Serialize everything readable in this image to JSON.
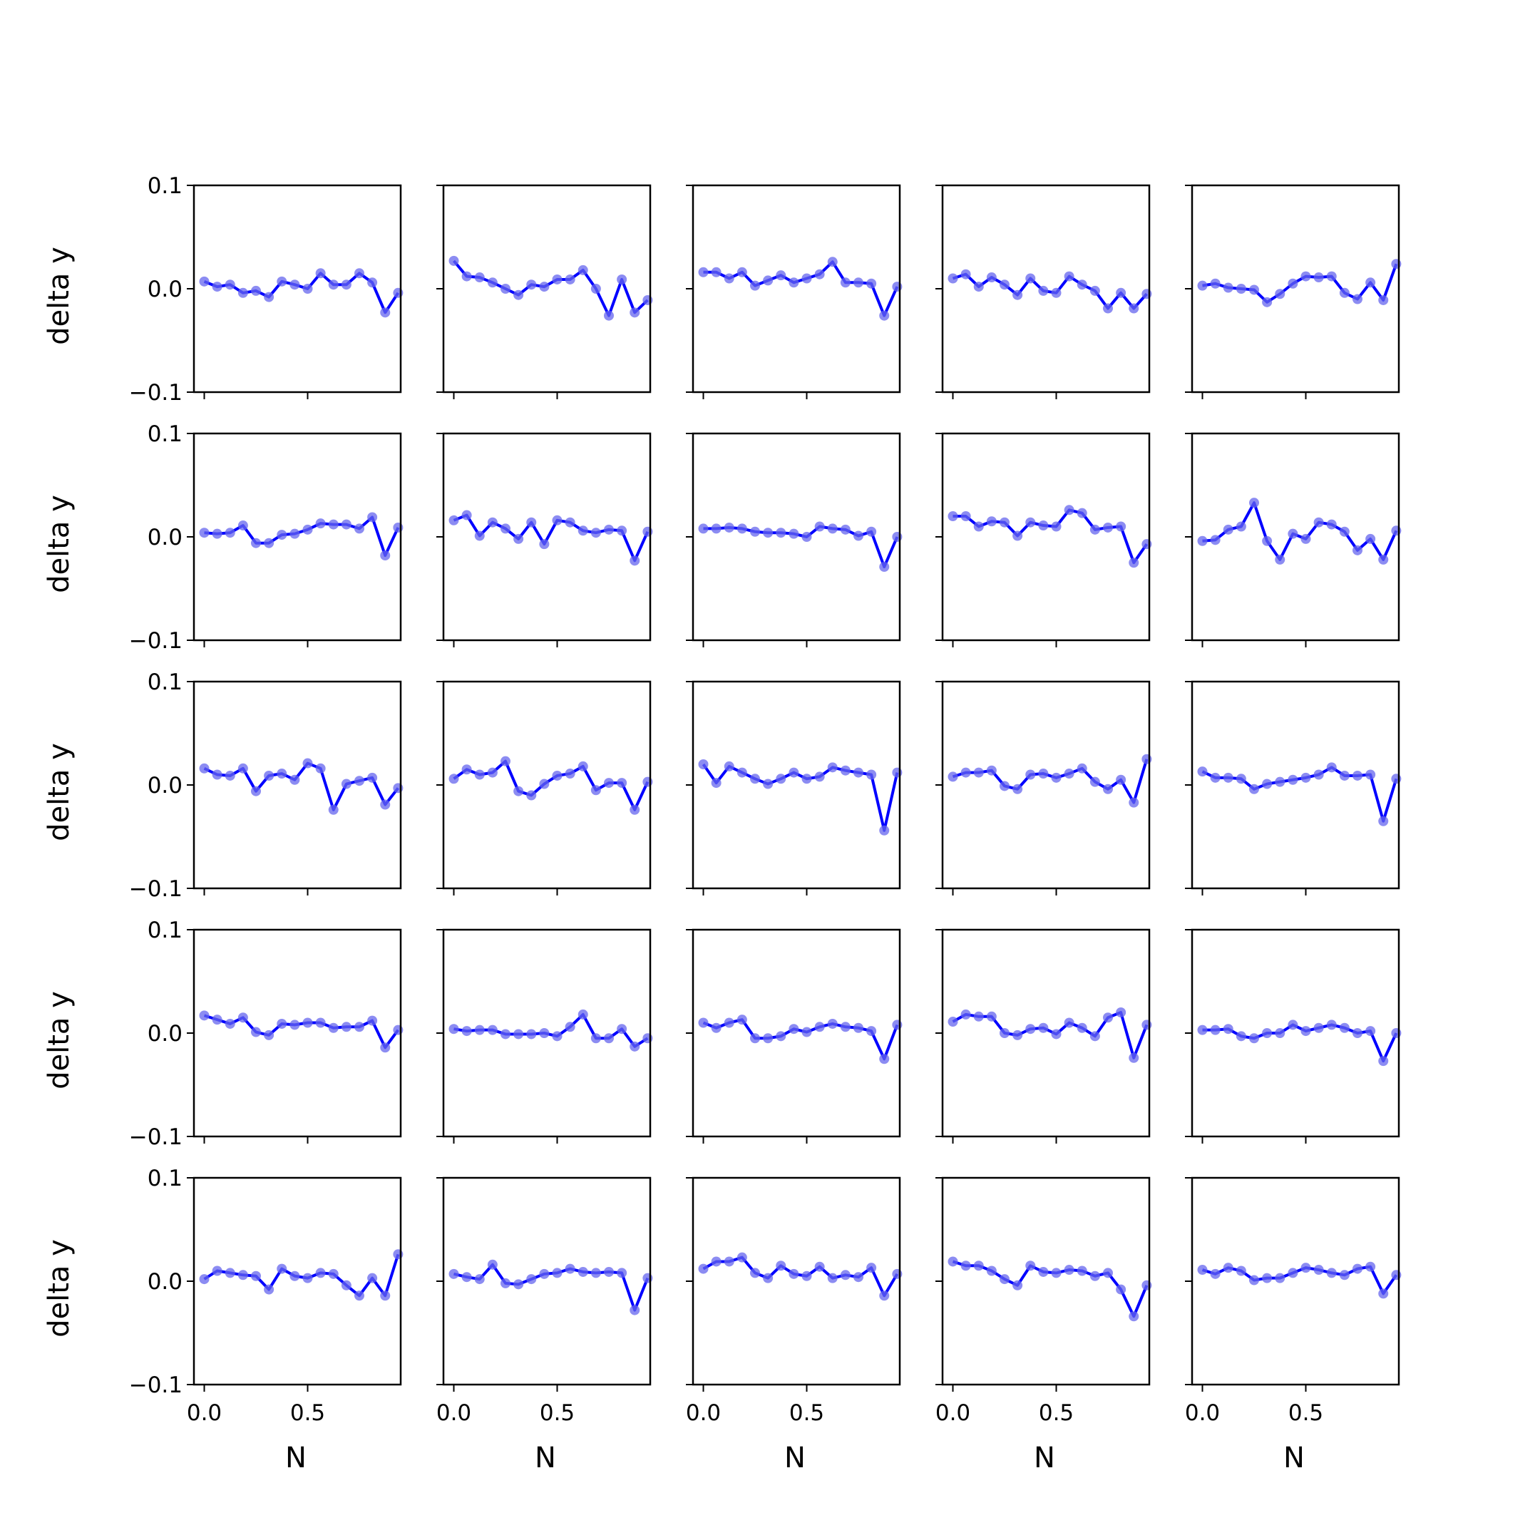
{
  "chart_data": {
    "type": "line",
    "layout": {
      "rows": 5,
      "cols": 5,
      "sharex": true,
      "sharey": true
    },
    "xlabel": "N",
    "ylabel": "delta y",
    "xlim": [
      -0.05,
      0.95
    ],
    "ylim": [
      -0.1,
      0.1
    ],
    "x_ticks": [
      0.0,
      0.5
    ],
    "x_tick_labels": [
      "0.0",
      "0.5"
    ],
    "y_ticks": [
      -0.1,
      0.0,
      0.1
    ],
    "y_tick_labels": [
      "−0.1",
      "0.0",
      "0.1"
    ],
    "grid": false,
    "line_color": "#0000ff",
    "marker_color": "#6666ee",
    "x": [
      0.0,
      0.0625,
      0.125,
      0.1875,
      0.25,
      0.3125,
      0.375,
      0.4375,
      0.5,
      0.5625,
      0.625,
      0.6875,
      0.75,
      0.8125,
      0.875,
      0.9375
    ],
    "panels": [
      {
        "values": [
          0.007,
          0.002,
          0.004,
          -0.004,
          -0.002,
          -0.008,
          0.007,
          0.004,
          0.0,
          0.015,
          0.004,
          0.004,
          0.015,
          0.006,
          -0.023,
          -0.004
        ]
      },
      {
        "values": [
          0.027,
          0.012,
          0.011,
          0.006,
          0.0,
          -0.006,
          0.004,
          0.002,
          0.009,
          0.009,
          0.018,
          0.0,
          -0.026,
          0.009,
          -0.023,
          -0.011
        ]
      },
      {
        "values": [
          0.016,
          0.016,
          0.01,
          0.016,
          0.003,
          0.008,
          0.013,
          0.006,
          0.01,
          0.014,
          0.026,
          0.006,
          0.006,
          0.005,
          -0.026,
          0.002
        ]
      },
      {
        "values": [
          0.01,
          0.014,
          0.002,
          0.011,
          0.004,
          -0.006,
          0.01,
          -0.002,
          -0.004,
          0.012,
          0.004,
          -0.002,
          -0.019,
          -0.004,
          -0.019,
          -0.005
        ]
      },
      {
        "values": [
          0.003,
          0.005,
          0.001,
          0.0,
          -0.001,
          -0.013,
          -0.005,
          0.005,
          0.012,
          0.011,
          0.012,
          -0.004,
          -0.01,
          0.006,
          -0.011,
          0.024
        ]
      },
      {
        "values": [
          0.004,
          0.003,
          0.004,
          0.011,
          -0.006,
          -0.006,
          0.002,
          0.003,
          0.007,
          0.013,
          0.012,
          0.012,
          0.008,
          0.019,
          -0.018,
          0.009
        ]
      },
      {
        "values": [
          0.016,
          0.021,
          0.001,
          0.014,
          0.008,
          -0.002,
          0.014,
          -0.007,
          0.016,
          0.014,
          0.006,
          0.004,
          0.007,
          0.006,
          -0.023,
          0.005
        ]
      },
      {
        "values": [
          0.008,
          0.008,
          0.009,
          0.008,
          0.005,
          0.004,
          0.004,
          0.003,
          0.0,
          0.01,
          0.008,
          0.007,
          0.001,
          0.005,
          -0.029,
          0.0
        ]
      },
      {
        "values": [
          0.02,
          0.02,
          0.01,
          0.015,
          0.014,
          0.001,
          0.014,
          0.011,
          0.01,
          0.026,
          0.023,
          0.007,
          0.009,
          0.01,
          -0.025,
          -0.007
        ]
      },
      {
        "values": [
          -0.004,
          -0.003,
          0.007,
          0.01,
          0.033,
          -0.004,
          -0.022,
          0.003,
          -0.002,
          0.014,
          0.012,
          0.005,
          -0.013,
          -0.002,
          -0.022,
          0.006
        ]
      },
      {
        "values": [
          0.016,
          0.01,
          0.009,
          0.016,
          -0.006,
          0.009,
          0.011,
          0.005,
          0.021,
          0.016,
          -0.024,
          0.001,
          0.004,
          0.007,
          -0.019,
          -0.003
        ]
      },
      {
        "values": [
          0.006,
          0.015,
          0.01,
          0.012,
          0.023,
          -0.006,
          -0.01,
          0.001,
          0.009,
          0.011,
          0.018,
          -0.005,
          0.002,
          0.002,
          -0.024,
          0.003
        ]
      },
      {
        "values": [
          0.02,
          0.002,
          0.018,
          0.012,
          0.006,
          0.001,
          0.006,
          0.012,
          0.006,
          0.008,
          0.017,
          0.014,
          0.012,
          0.01,
          -0.044,
          0.012
        ]
      },
      {
        "values": [
          0.008,
          0.012,
          0.012,
          0.014,
          -0.001,
          -0.004,
          0.01,
          0.011,
          0.007,
          0.011,
          0.016,
          0.003,
          -0.004,
          0.005,
          -0.017,
          0.025
        ]
      },
      {
        "values": [
          0.013,
          0.007,
          0.007,
          0.006,
          -0.004,
          0.001,
          0.003,
          0.005,
          0.007,
          0.01,
          0.017,
          0.009,
          0.009,
          0.01,
          -0.035,
          0.006
        ]
      },
      {
        "values": [
          0.017,
          0.013,
          0.009,
          0.015,
          0.001,
          -0.002,
          0.009,
          0.008,
          0.01,
          0.01,
          0.005,
          0.006,
          0.006,
          0.012,
          -0.014,
          0.003
        ]
      },
      {
        "values": [
          0.004,
          0.002,
          0.003,
          0.003,
          -0.001,
          -0.001,
          -0.001,
          0.0,
          -0.003,
          0.006,
          0.018,
          -0.005,
          -0.005,
          0.004,
          -0.013,
          -0.005
        ]
      },
      {
        "values": [
          0.01,
          0.005,
          0.01,
          0.013,
          -0.005,
          -0.005,
          -0.003,
          0.004,
          0.001,
          0.006,
          0.009,
          0.006,
          0.005,
          0.002,
          -0.025,
          0.008
        ]
      },
      {
        "values": [
          0.011,
          0.018,
          0.016,
          0.016,
          0.0,
          -0.002,
          0.004,
          0.005,
          -0.001,
          0.01,
          0.005,
          -0.003,
          0.015,
          0.02,
          -0.024,
          0.008
        ]
      },
      {
        "values": [
          0.003,
          0.003,
          0.004,
          -0.003,
          -0.005,
          0.0,
          0.0,
          0.008,
          0.002,
          0.005,
          0.008,
          0.005,
          0.0,
          0.002,
          -0.027,
          0.0
        ]
      },
      {
        "values": [
          0.002,
          0.01,
          0.008,
          0.006,
          0.005,
          -0.008,
          0.012,
          0.005,
          0.003,
          0.008,
          0.007,
          -0.004,
          -0.014,
          0.003,
          -0.014,
          0.026
        ]
      },
      {
        "values": [
          0.007,
          0.004,
          0.002,
          0.016,
          -0.002,
          -0.003,
          0.002,
          0.007,
          0.008,
          0.012,
          0.009,
          0.008,
          0.009,
          0.008,
          -0.028,
          0.003
        ]
      },
      {
        "values": [
          0.012,
          0.019,
          0.019,
          0.023,
          0.008,
          0.003,
          0.015,
          0.007,
          0.005,
          0.014,
          0.003,
          0.006,
          0.004,
          0.013,
          -0.014,
          0.007
        ]
      },
      {
        "values": [
          0.019,
          0.015,
          0.015,
          0.01,
          0.002,
          -0.004,
          0.015,
          0.009,
          0.008,
          0.011,
          0.01,
          0.005,
          0.008,
          -0.008,
          -0.034,
          -0.004
        ]
      },
      {
        "values": [
          0.011,
          0.007,
          0.013,
          0.01,
          0.001,
          0.003,
          0.003,
          0.008,
          0.013,
          0.011,
          0.008,
          0.006,
          0.012,
          0.014,
          -0.012,
          0.006
        ]
      }
    ]
  }
}
